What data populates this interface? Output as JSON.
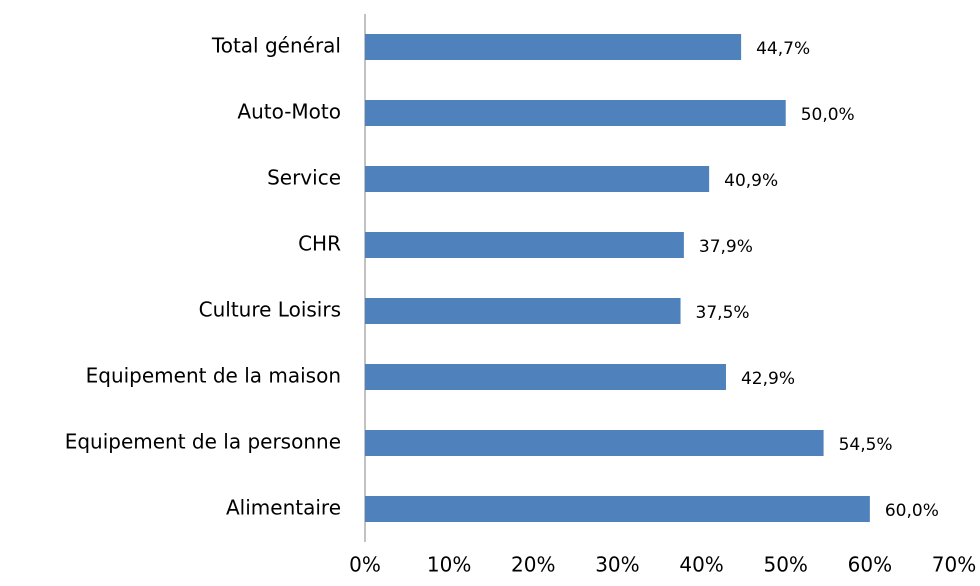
{
  "chart_data": {
    "type": "barh",
    "categories": [
      "Total général",
      "Auto-Moto",
      "Service",
      "CHR",
      "Culture Loisirs",
      "Equipement de la maison",
      "Equipement de la personne",
      "Alimentaire"
    ],
    "values": [
      44.7,
      50.0,
      40.9,
      37.9,
      37.5,
      42.9,
      54.5,
      60.0
    ],
    "value_labels": [
      "44,7%",
      "50,0%",
      "40,9%",
      "37,9%",
      "37,5%",
      "42,9%",
      "54,5%",
      "60,0%"
    ],
    "color": "#4f81bd",
    "xlim": [
      0,
      70
    ],
    "xticks": [
      {
        "value": 0,
        "label": "0%"
      },
      {
        "value": 10,
        "label": "10%"
      },
      {
        "value": 20,
        "label": "20%"
      },
      {
        "value": 30,
        "label": "30%"
      },
      {
        "value": 40,
        "label": "40%"
      },
      {
        "value": 50,
        "label": "50%"
      },
      {
        "value": 60,
        "label": "60%"
      },
      {
        "value": 70,
        "label": "70%"
      }
    ],
    "grid": false
  }
}
